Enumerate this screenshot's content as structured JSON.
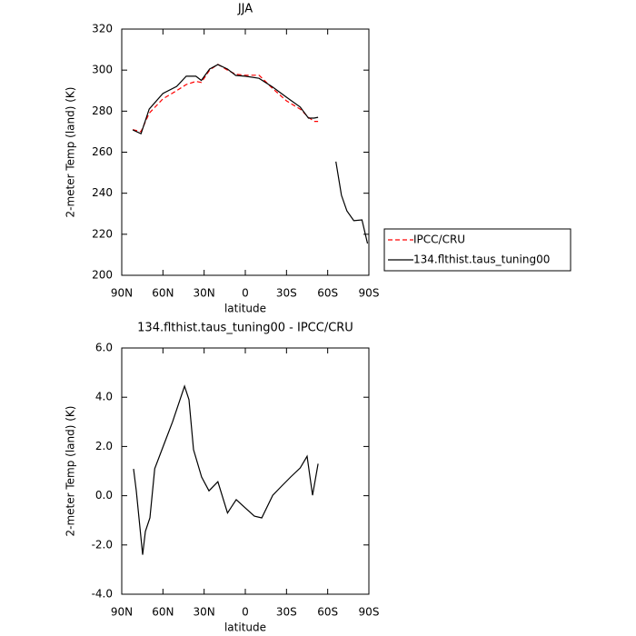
{
  "chart_data": [
    {
      "type": "line",
      "title": "JJA",
      "xlabel": "latitude",
      "ylabel": "2-meter Temp (land) (K)",
      "x": [
        82,
        76,
        70,
        60,
        50,
        43,
        36,
        32,
        26,
        20,
        13,
        7,
        0,
        -10,
        -20,
        -30,
        -40,
        -46,
        -50,
        -53,
        -60,
        -66,
        -70,
        -74,
        -79,
        -85,
        -89
      ],
      "xlim": [
        90,
        -90
      ],
      "xticks": [
        {
          "value": 90,
          "label": "90N"
        },
        {
          "value": 60,
          "label": "60N"
        },
        {
          "value": 30,
          "label": "30N"
        },
        0,
        {
          "value": -30,
          "label": "30S"
        },
        {
          "value": -60,
          "label": "60S"
        },
        {
          "value": -90,
          "label": "90S"
        }
      ],
      "ylim": [
        200,
        320
      ],
      "yticks": [
        200,
        220,
        240,
        260,
        280,
        300,
        320
      ],
      "legend": "right",
      "series": [
        {
          "name": "IPCC/CRU",
          "color": "#ff0000",
          "dashed": true,
          "values": [
            271,
            270,
            279,
            286,
            290,
            293,
            294.5,
            294,
            300,
            302.8,
            300,
            298,
            297.5,
            297.5,
            291,
            285,
            281,
            277,
            275,
            275,
            null,
            null,
            null,
            null,
            null,
            null,
            null
          ]
        },
        {
          "name": "134.flthist.taus_tuning00",
          "color": "#000000",
          "dashed": false,
          "values": [
            270.9,
            269,
            281,
            288.6,
            292,
            297,
            297,
            295,
            300.5,
            302.7,
            300.5,
            297.4,
            297,
            296,
            291.7,
            286.8,
            282,
            276.6,
            276.6,
            277,
            null,
            255.4,
            239,
            231.4,
            226.6,
            227,
            215.5
          ]
        }
      ]
    },
    {
      "type": "line",
      "title": "134.flthist.taus_tuning00 - IPCC/CRU",
      "xlabel": "latitude",
      "ylabel": "2-meter Temp (land) (K)",
      "x": [
        81.4,
        79.4,
        74.8,
        72.8,
        69.5,
        66,
        59.5,
        53,
        47.6,
        44.3,
        41,
        37.7,
        31.8,
        26.5,
        20,
        13,
        6.6,
        0,
        -6.6,
        -12,
        -20,
        -26.5,
        -33,
        -40,
        -45,
        -49,
        -53
      ],
      "xlim": [
        90,
        -90
      ],
      "xticks": [
        {
          "value": 90,
          "label": "90N"
        },
        {
          "value": 60,
          "label": "60N"
        },
        {
          "value": 30,
          "label": "30N"
        },
        0,
        {
          "value": -30,
          "label": "30S"
        },
        {
          "value": -60,
          "label": "60S"
        },
        {
          "value": -90,
          "label": "90S"
        }
      ],
      "ylim": [
        -4,
        6
      ],
      "yticks": [
        {
          "value": -4,
          "label": "-4.0"
        },
        {
          "value": -2,
          "label": "-2.0"
        },
        {
          "value": 0,
          "label": "0.0"
        },
        {
          "value": 2,
          "label": "2.0"
        },
        {
          "value": 4,
          "label": "4.0"
        },
        {
          "value": 6,
          "label": "6.0"
        }
      ],
      "series": [
        {
          "color": "#000000",
          "dashed": false,
          "values": [
            1.09,
            0.2,
            -2.4,
            -1.45,
            -0.9,
            1.1,
            2.05,
            3.0,
            3.9,
            4.45,
            3.9,
            1.87,
            0.76,
            0.2,
            0.57,
            -0.7,
            -0.16,
            -0.5,
            -0.83,
            -0.9,
            0.02,
            0.39,
            0.76,
            1.13,
            1.6,
            0.02,
            1.3
          ]
        }
      ]
    }
  ]
}
